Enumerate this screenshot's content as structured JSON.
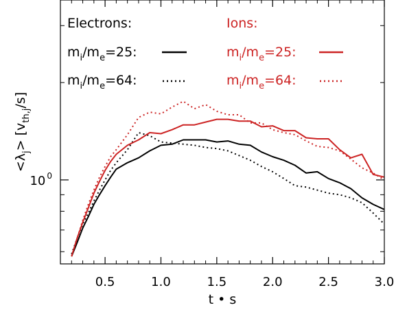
{
  "chart_data": {
    "type": "line",
    "xlabel": "t • s",
    "ylabel": {
      "prefix": "<λ",
      "sub": "j",
      "mid": "> [v",
      "sub_th": "th,j",
      "suffix": "/s]"
    },
    "xlim": [
      0.1,
      3.0
    ],
    "ylim": [
      0.55,
      3.6
    ],
    "yscale": "log",
    "x_ticks": [
      0.5,
      1.0,
      1.5,
      2.0,
      2.5,
      3.0
    ],
    "x_tick_labels": [
      "0.5",
      "1.0",
      "1.5",
      "2.0",
      "2.5",
      "3.0"
    ],
    "y_major_tick": {
      "value": 1.0,
      "label_base": "10",
      "label_exp": "0"
    },
    "grid": false,
    "legend": {
      "placement": "top",
      "electrons_title": "Electrons:",
      "ions_title": "Ions:",
      "ratio25": {
        "m": "m",
        "i": "i",
        "slash": "/m",
        "e": "e",
        "val": "=25:"
      },
      "ratio64": {
        "m": "m",
        "i": "i",
        "slash": "/m",
        "e": "e",
        "val": "=64:"
      }
    },
    "colors": {
      "electrons": "#000000",
      "ions": "#cc2222"
    },
    "series": [
      {
        "group": "electrons",
        "ratio": 25,
        "style": "solid",
        "x": [
          0.2,
          0.25,
          0.3,
          0.35,
          0.4,
          0.45,
          0.5,
          0.55,
          0.6,
          0.7,
          0.8,
          0.9,
          1.0,
          1.1,
          1.2,
          1.3,
          1.4,
          1.5,
          1.6,
          1.7,
          1.8,
          1.9,
          2.0,
          2.1,
          2.2,
          2.3,
          2.4,
          2.5,
          2.6,
          2.7,
          2.8,
          2.9,
          3.0
        ],
        "y": [
          0.58,
          0.64,
          0.71,
          0.77,
          0.84,
          0.9,
          0.96,
          1.02,
          1.08,
          1.13,
          1.17,
          1.23,
          1.28,
          1.29,
          1.33,
          1.33,
          1.33,
          1.31,
          1.32,
          1.29,
          1.28,
          1.22,
          1.18,
          1.15,
          1.11,
          1.05,
          1.06,
          1.01,
          0.98,
          0.94,
          0.88,
          0.84,
          0.81
        ]
      },
      {
        "group": "electrons",
        "ratio": 64,
        "style": "dotted",
        "x": [
          0.2,
          0.25,
          0.3,
          0.35,
          0.4,
          0.45,
          0.5,
          0.55,
          0.6,
          0.7,
          0.8,
          0.9,
          1.0,
          1.1,
          1.2,
          1.3,
          1.4,
          1.5,
          1.6,
          1.7,
          1.8,
          1.9,
          2.0,
          2.1,
          2.2,
          2.3,
          2.4,
          2.5,
          2.6,
          2.7,
          2.8,
          2.9,
          3.0
        ],
        "y": [
          0.59,
          0.66,
          0.73,
          0.79,
          0.86,
          0.93,
          1.0,
          1.07,
          1.13,
          1.24,
          1.4,
          1.37,
          1.31,
          1.3,
          1.29,
          1.28,
          1.26,
          1.25,
          1.23,
          1.19,
          1.15,
          1.1,
          1.06,
          1.01,
          0.96,
          0.95,
          0.93,
          0.91,
          0.9,
          0.88,
          0.85,
          0.79,
          0.73
        ]
      },
      {
        "group": "ions",
        "ratio": 25,
        "style": "solid",
        "x": [
          0.2,
          0.25,
          0.3,
          0.35,
          0.4,
          0.45,
          0.5,
          0.55,
          0.6,
          0.7,
          0.8,
          0.9,
          1.0,
          1.1,
          1.2,
          1.3,
          1.4,
          1.5,
          1.6,
          1.7,
          1.8,
          1.9,
          2.0,
          2.1,
          2.2,
          2.3,
          2.4,
          2.5,
          2.6,
          2.7,
          2.8,
          2.9,
          3.0
        ],
        "y": [
          0.58,
          0.66,
          0.74,
          0.82,
          0.91,
          0.99,
          1.07,
          1.14,
          1.2,
          1.28,
          1.33,
          1.4,
          1.39,
          1.43,
          1.48,
          1.48,
          1.51,
          1.54,
          1.54,
          1.52,
          1.52,
          1.46,
          1.47,
          1.42,
          1.42,
          1.35,
          1.34,
          1.34,
          1.24,
          1.17,
          1.2,
          1.04,
          1.02
        ]
      },
      {
        "group": "ions",
        "ratio": 64,
        "style": "dotted",
        "x": [
          0.2,
          0.25,
          0.3,
          0.35,
          0.4,
          0.45,
          0.5,
          0.55,
          0.6,
          0.7,
          0.8,
          0.9,
          1.0,
          1.1,
          1.2,
          1.3,
          1.4,
          1.5,
          1.6,
          1.7,
          1.8,
          1.9,
          2.0,
          2.1,
          2.2,
          2.3,
          2.4,
          2.5,
          2.6,
          2.7,
          2.8,
          2.9,
          3.0
        ],
        "y": [
          0.58,
          0.66,
          0.75,
          0.84,
          0.93,
          1.02,
          1.1,
          1.18,
          1.24,
          1.38,
          1.56,
          1.62,
          1.6,
          1.68,
          1.75,
          1.66,
          1.71,
          1.63,
          1.59,
          1.59,
          1.5,
          1.5,
          1.43,
          1.4,
          1.38,
          1.32,
          1.27,
          1.26,
          1.23,
          1.16,
          1.09,
          1.05,
          1.0
        ]
      }
    ]
  }
}
